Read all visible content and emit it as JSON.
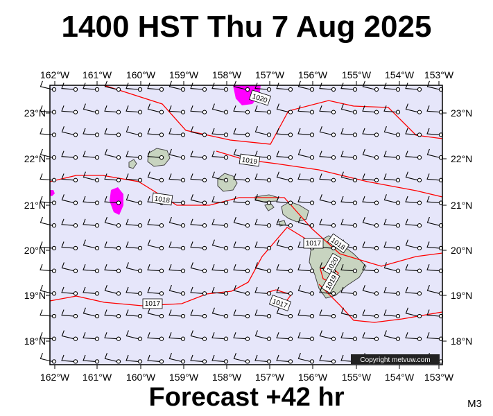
{
  "header": {
    "title": "1400 HST Thu 7 Aug 2025"
  },
  "footer": {
    "forecast": "Forecast +42 hr",
    "model": "M3"
  },
  "map": {
    "lon_labels": [
      "162°W",
      "161°W",
      "160°W",
      "159°W",
      "158°W",
      "157°W",
      "156°W",
      "155°W",
      "154°W",
      "153°W"
    ],
    "lat_labels": [
      "23°N",
      "22°N",
      "21°N",
      "20°N",
      "19°N",
      "18°N"
    ],
    "copyright": "Copyright metvuw.com",
    "colors": {
      "ocean": "#e6e6fa",
      "isobar": "#ff0000",
      "rain": "#ff00ff",
      "land": "#c8d4c0",
      "frame": "#000000"
    },
    "isobars": [
      {
        "value": "1020",
        "label": "1020"
      },
      {
        "value": "1019",
        "label": "1019"
      },
      {
        "value": "1018",
        "label": "1018"
      },
      {
        "value": "1017",
        "label": "1017"
      },
      {
        "value": "1017",
        "label": "1017"
      },
      {
        "value": "1017",
        "label": "1017"
      },
      {
        "value": "1018",
        "label": "1018"
      },
      {
        "value": "1020",
        "label": "1020"
      },
      {
        "value": "1019",
        "label": "1019"
      }
    ],
    "wind_barbs": "northeast trade winds ~10-20 kt across domain"
  }
}
